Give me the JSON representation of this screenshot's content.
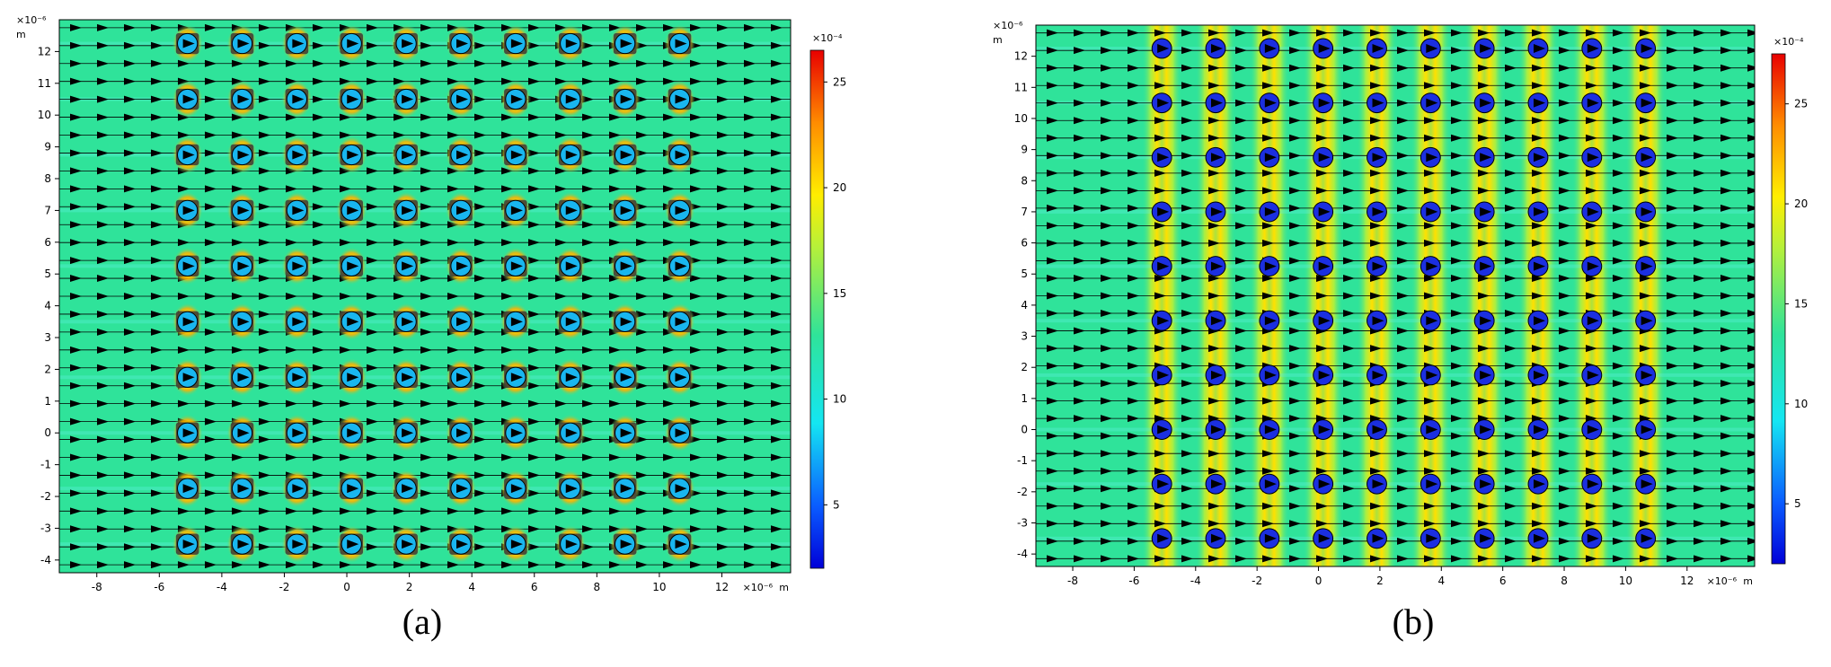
{
  "figure": {
    "background": "#ffffff",
    "field_color": "#2fe39a",
    "arrow_color": "#000000"
  },
  "chart_data": [
    {
      "type": "heatmap",
      "panel_label": "(a)",
      "x_exponent": "×10⁻⁶",
      "x_unit": "m",
      "y_exponent": "×10⁻⁶",
      "y_unit": "m",
      "xlim": [
        -9.2,
        14.2
      ],
      "ylim": [
        -4.4,
        13.0
      ],
      "x_ticks": [
        -8,
        -6,
        -4,
        -2,
        0,
        2,
        4,
        6,
        8,
        10,
        12
      ],
      "y_ticks": [
        -4,
        -3,
        -2,
        -1,
        0,
        1,
        2,
        3,
        4,
        5,
        6,
        7,
        8,
        9,
        10,
        11,
        12
      ],
      "particle_x": [
        -5.1,
        -3.35,
        -1.6,
        0.15,
        1.9,
        3.65,
        5.4,
        7.15,
        8.9,
        10.65
      ],
      "particle_y": [
        -3.5,
        -1.75,
        0.0,
        1.75,
        3.5,
        5.25,
        7.0,
        8.75,
        10.5,
        12.25
      ],
      "particle_radius": 0.32,
      "particle_fill": "#19b6ef",
      "colorbar": {
        "exponent": "×10⁻⁴",
        "min": 2,
        "max": 26.5,
        "ticks": [
          5,
          10,
          15,
          20,
          25
        ]
      },
      "flow_direction": "left-to-right"
    },
    {
      "type": "heatmap",
      "panel_label": "(b)",
      "x_exponent": "×10⁻⁶",
      "x_unit": "m",
      "y_exponent": "×10⁻⁶",
      "y_unit": "m",
      "xlim": [
        -9.2,
        14.2
      ],
      "ylim": [
        -4.4,
        13.0
      ],
      "x_ticks": [
        -8,
        -6,
        -4,
        -2,
        0,
        2,
        4,
        6,
        8,
        10,
        12
      ],
      "y_ticks": [
        -4,
        -3,
        -2,
        -1,
        0,
        1,
        2,
        3,
        4,
        5,
        6,
        7,
        8,
        9,
        10,
        11,
        12
      ],
      "particle_x": [
        -5.1,
        -3.35,
        -1.6,
        0.15,
        1.9,
        3.65,
        5.4,
        7.15,
        8.9,
        10.65
      ],
      "particle_y": [
        -3.5,
        -1.75,
        0.0,
        1.75,
        3.5,
        5.25,
        7.0,
        8.75,
        10.5,
        12.25
      ],
      "particle_radius": 0.32,
      "particle_fill": "#1b2fe0",
      "colorbar": {
        "exponent": "×10⁻⁴",
        "min": 2,
        "max": 27.5,
        "ticks": [
          5,
          10,
          15,
          20,
          25
        ]
      },
      "flow_direction": "left-to-right"
    }
  ]
}
